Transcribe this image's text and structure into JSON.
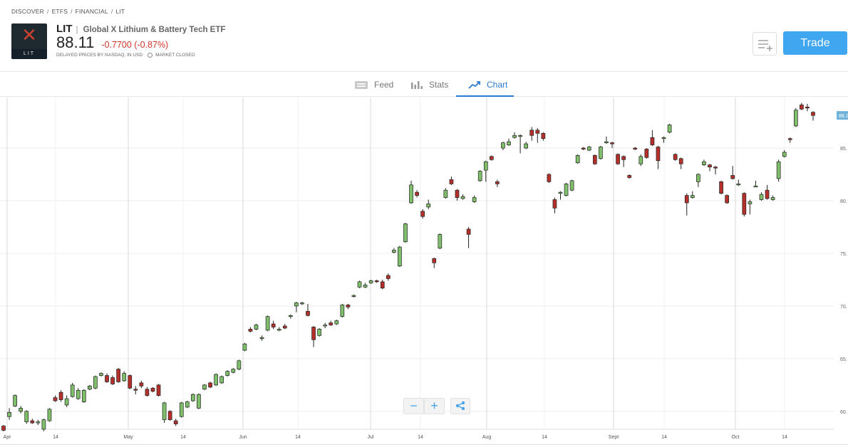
{
  "breadcrumb": [
    "DISCOVER",
    "ETFS",
    "FINANCIAL",
    "LIT"
  ],
  "instrument": {
    "logo_text": "LIT",
    "ticker": "LIT",
    "name": "Global X Lithium & Battery Tech ETF",
    "price": "88.11",
    "change": "-0.7700 (-0.87%)",
    "delayed_text": "DELAYED PRICES BY NASDAQ, IN USD",
    "market_status": "MARKET CLOSED"
  },
  "actions": {
    "trade_label": "Trade"
  },
  "tabs": [
    {
      "label": "Feed",
      "icon": "feed-icon",
      "active": false
    },
    {
      "label": "Stats",
      "icon": "stats-icon",
      "active": false
    },
    {
      "label": "Chart",
      "icon": "chart-icon",
      "active": true
    }
  ],
  "chart_controls": {
    "zoom_out": "−",
    "zoom_in": "+",
    "share_icon": "share-icon"
  },
  "colors": {
    "up": "#7fbf6b",
    "down": "#b5302a",
    "accent": "#41a6f0",
    "last_price_tag": "#6fb3d9"
  },
  "chart_data": {
    "type": "candlestick",
    "y_ticks": [
      "60.",
      "65.",
      "70.",
      "75.",
      "80.",
      "85.",
      "88.1"
    ],
    "ylim": [
      58.3,
      89.8
    ],
    "last_price_label": "88.1",
    "x_ticks": [
      "Apr",
      "14",
      "May",
      "14",
      "Jun",
      "14",
      "Jul",
      "14",
      "Aug",
      "14",
      "Sept",
      "14",
      "Oct",
      "14"
    ],
    "grid": true,
    "candles": [
      [
        58.6,
        58.2,
        58.7,
        58.1
      ],
      [
        59.5,
        59.9,
        60.3,
        59.2
      ],
      [
        60.5,
        61.5,
        61.6,
        60.4
      ],
      [
        60.0,
        60.3,
        60.5,
        59.8
      ],
      [
        59.0,
        60.0,
        60.1,
        58.8
      ],
      [
        59.1,
        58.9,
        59.3,
        58.8
      ],
      [
        58.9,
        59.0,
        59.2,
        58.7
      ],
      [
        58.3,
        59.2,
        59.3,
        58.1
      ],
      [
        59.1,
        60.2,
        60.3,
        59.0
      ],
      [
        61.3,
        61.0,
        61.5,
        60.9
      ],
      [
        61.8,
        61.1,
        62.0,
        60.9
      ],
      [
        60.6,
        61.2,
        61.5,
        60.4
      ],
      [
        61.4,
        62.5,
        62.7,
        61.3
      ],
      [
        61.2,
        62.0,
        62.2,
        61.1
      ],
      [
        60.9,
        62.0,
        62.1,
        60.8
      ],
      [
        62.1,
        62.4,
        62.5,
        62.0
      ],
      [
        62.2,
        63.3,
        63.4,
        62.1
      ],
      [
        63.4,
        63.6,
        63.7,
        63.3
      ],
      [
        63.4,
        62.8,
        63.6,
        62.7
      ],
      [
        63.2,
        62.6,
        63.4,
        62.5
      ],
      [
        64.0,
        62.8,
        64.1,
        62.7
      ],
      [
        62.9,
        63.6,
        63.8,
        62.8
      ],
      [
        63.4,
        62.2,
        63.5,
        62.1
      ],
      [
        62.1,
        62.0,
        62.4,
        61.6
      ],
      [
        62.7,
        62.4,
        62.9,
        62.2
      ],
      [
        62.1,
        61.5,
        62.3,
        61.4
      ],
      [
        62.2,
        61.9,
        62.3,
        61.8
      ],
      [
        62.5,
        61.5,
        62.6,
        61.4
      ],
      [
        59.2,
        60.8,
        60.9,
        58.9
      ],
      [
        60.0,
        59.2,
        60.1,
        59.1
      ],
      [
        59.1,
        58.8,
        59.3,
        58.6
      ],
      [
        59.5,
        60.8,
        60.9,
        59.4
      ],
      [
        60.4,
        60.9,
        61.0,
        60.3
      ],
      [
        61.0,
        61.6,
        61.7,
        60.9
      ],
      [
        60.3,
        61.6,
        61.7,
        60.2
      ],
      [
        62.1,
        62.5,
        62.6,
        62.0
      ],
      [
        62.7,
        62.3,
        62.8,
        62.2
      ],
      [
        62.5,
        63.5,
        63.6,
        62.4
      ],
      [
        62.7,
        63.3,
        63.4,
        62.6
      ],
      [
        63.4,
        63.8,
        63.9,
        63.3
      ],
      [
        63.7,
        64.0,
        64.1,
        63.6
      ],
      [
        64.0,
        64.8,
        64.9,
        63.9
      ],
      [
        65.8,
        66.4,
        66.5,
        65.7
      ],
      [
        67.8,
        67.6,
        68.0,
        67.5
      ],
      [
        67.8,
        68.2,
        68.3,
        67.7
      ],
      [
        66.9,
        67.0,
        67.2,
        66.7
      ],
      [
        67.7,
        69.0,
        69.1,
        67.6
      ],
      [
        68.3,
        68.0,
        68.6,
        67.8
      ],
      [
        67.7,
        67.8,
        68.0,
        67.6
      ],
      [
        68.1,
        67.9,
        68.3,
        67.8
      ],
      [
        69.0,
        69.1,
        69.2,
        68.8
      ],
      [
        70.0,
        70.3,
        70.4,
        69.4
      ],
      [
        70.2,
        70.3,
        70.4,
        70.1
      ],
      [
        69.5,
        69.1,
        70.2,
        69.0
      ],
      [
        68.0,
        66.8,
        68.1,
        66.1
      ],
      [
        67.2,
        67.8,
        67.9,
        67.1
      ],
      [
        68.1,
        68.2,
        68.4,
        67.9
      ],
      [
        68.4,
        68.2,
        68.6,
        68.1
      ],
      [
        68.3,
        68.6,
        68.7,
        68.2
      ],
      [
        69.0,
        70.1,
        70.2,
        68.9
      ],
      [
        70.1,
        69.9,
        70.2,
        69.7
      ],
      [
        70.9,
        71.0,
        71.1,
        70.8
      ],
      [
        71.8,
        72.3,
        72.4,
        71.7
      ],
      [
        71.8,
        72.0,
        72.2,
        71.7
      ],
      [
        72.2,
        72.4,
        72.5,
        72.1
      ],
      [
        72.4,
        72.3,
        72.5,
        72.2
      ],
      [
        72.3,
        71.7,
        72.5,
        71.6
      ],
      [
        72.9,
        72.6,
        73.1,
        72.4
      ],
      [
        75.1,
        75.3,
        75.5,
        75.0
      ],
      [
        73.8,
        75.6,
        75.7,
        73.7
      ],
      [
        76.1,
        77.8,
        77.9,
        76.0
      ],
      [
        79.8,
        81.5,
        81.9,
        79.7
      ],
      [
        80.8,
        80.5,
        81.0,
        80.3
      ],
      [
        79.0,
        78.5,
        79.2,
        78.3
      ],
      [
        79.4,
        79.7,
        80.1,
        79.2
      ],
      [
        74.5,
        74.1,
        74.6,
        73.6
      ],
      [
        75.5,
        76.8,
        76.9,
        75.4
      ],
      [
        80.3,
        81.0,
        81.2,
        80.2
      ],
      [
        82.0,
        81.6,
        82.3,
        81.5
      ],
      [
        81.0,
        80.3,
        81.1,
        80.0
      ],
      [
        80.2,
        80.4,
        80.6,
        80.1
      ],
      [
        77.3,
        76.8,
        77.5,
        75.5
      ],
      [
        79.9,
        80.3,
        80.5,
        79.8
      ],
      [
        81.9,
        82.8,
        82.9,
        81.8
      ],
      [
        82.9,
        83.7,
        83.8,
        81.8
      ],
      [
        84.2,
        83.9,
        84.3,
        83.8
      ],
      [
        81.8,
        81.6,
        82.0,
        81.3
      ],
      [
        85.0,
        85.5,
        85.6,
        84.8
      ],
      [
        85.3,
        85.6,
        85.9,
        85.2
      ],
      [
        86.0,
        86.2,
        86.5,
        85.9
      ],
      [
        86.1,
        86.2,
        86.3,
        84.5
      ],
      [
        85.0,
        85.4,
        85.6,
        84.9
      ],
      [
        86.7,
        86.2,
        87.0,
        85.7
      ],
      [
        86.7,
        86.4,
        86.9,
        85.5
      ],
      [
        86.4,
        85.9,
        86.5,
        85.7
      ],
      [
        82.5,
        81.8,
        82.6,
        81.7
      ],
      [
        80.1,
        79.3,
        80.3,
        78.8
      ],
      [
        80.7,
        80.8,
        80.9,
        80.1
      ],
      [
        80.5,
        81.6,
        81.7,
        80.4
      ],
      [
        81.0,
        81.9,
        82.0,
        80.9
      ],
      [
        83.6,
        84.3,
        84.4,
        83.5
      ],
      [
        85.0,
        84.9,
        85.1,
        84.8
      ],
      [
        84.8,
        85.1,
        85.2,
        84.7
      ],
      [
        84.3,
        83.5,
        84.4,
        83.4
      ],
      [
        84.0,
        85.1,
        85.2,
        83.9
      ],
      [
        85.5,
        85.6,
        86.1,
        85.4
      ],
      [
        85.5,
        85.4,
        85.6,
        85.0
      ],
      [
        84.4,
        83.5,
        84.5,
        83.4
      ],
      [
        84.2,
        83.9,
        84.3,
        83.2
      ],
      [
        82.4,
        82.2,
        82.5,
        82.1
      ],
      [
        85.0,
        84.9,
        85.1,
        84.8
      ],
      [
        83.5,
        84.2,
        84.4,
        83.3
      ],
      [
        84.9,
        84.1,
        85.0,
        84.0
      ],
      [
        86.0,
        85.3,
        86.7,
        85.2
      ],
      [
        85.1,
        83.8,
        85.2,
        83.0
      ],
      [
        85.9,
        86.0,
        86.1,
        85.5
      ],
      [
        86.5,
        87.2,
        87.3,
        86.4
      ],
      [
        84.4,
        83.9,
        84.5,
        83.8
      ],
      [
        84.0,
        83.5,
        84.1,
        83.0
      ],
      [
        80.5,
        79.8,
        80.7,
        78.6
      ],
      [
        80.3,
        80.5,
        80.9,
        80.2
      ],
      [
        81.8,
        82.5,
        82.6,
        81.3
      ],
      [
        83.4,
        83.7,
        83.9,
        83.3
      ],
      [
        83.4,
        83.2,
        83.5,
        82.8
      ],
      [
        83.2,
        83.1,
        83.3,
        82.5
      ],
      [
        81.8,
        80.7,
        81.9,
        80.6
      ],
      [
        80.5,
        79.8,
        80.6,
        79.7
      ],
      [
        82.4,
        82.1,
        83.3,
        82.0
      ],
      [
        81.5,
        81.6,
        82.0,
        81.4
      ],
      [
        80.7,
        78.7,
        80.8,
        78.5
      ],
      [
        79.7,
        79.9,
        80.1,
        78.7
      ],
      [
        81.4,
        81.4,
        81.9,
        81.3
      ],
      [
        80.1,
        80.6,
        80.8,
        80.0
      ],
      [
        81.0,
        80.2,
        81.5,
        80.1
      ],
      [
        80.1,
        80.3,
        80.5,
        80.0
      ],
      [
        82.1,
        83.7,
        83.9,
        81.8
      ],
      [
        84.2,
        84.6,
        84.8,
        84.1
      ],
      [
        85.9,
        85.8,
        86.0,
        85.5
      ],
      [
        87.1,
        88.6,
        88.8,
        87.0
      ],
      [
        89.1,
        88.7,
        89.3,
        88.6
      ],
      [
        88.9,
        88.8,
        89.2,
        88.5
      ],
      [
        88.4,
        88.1,
        88.5,
        87.6
      ]
    ]
  }
}
